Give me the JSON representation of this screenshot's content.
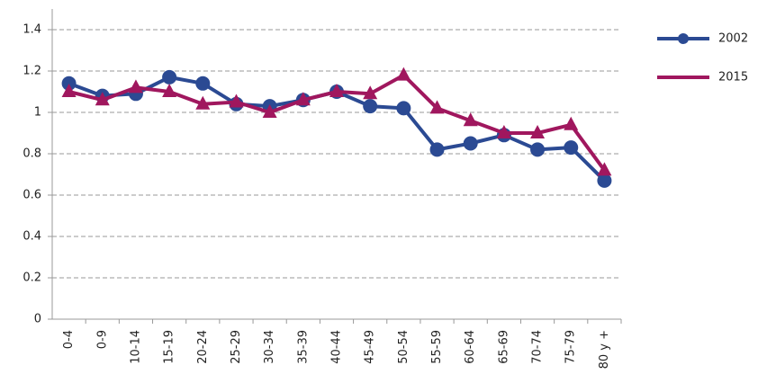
{
  "chart_data": {
    "type": "line",
    "categories": [
      "0-4",
      "0-9",
      "10-14",
      "15-19",
      "20-24",
      "25-29",
      "30-34",
      "35-39",
      "40-44",
      "45-49",
      "50-54",
      "55-59",
      "60-64",
      "65-69",
      "70-74",
      "75-79",
      "80 y +"
    ],
    "series": [
      {
        "name": "2002",
        "color": "#2b4a93",
        "marker": "circle",
        "values": [
          1.14,
          1.08,
          1.09,
          1.17,
          1.14,
          1.04,
          1.03,
          1.06,
          1.1,
          1.03,
          1.02,
          0.82,
          0.85,
          0.89,
          0.82,
          0.83,
          0.67
        ]
      },
      {
        "name": "2015",
        "color": "#a0175e",
        "marker": "triangle",
        "values": [
          1.1,
          1.06,
          1.12,
          1.1,
          1.04,
          1.05,
          1.0,
          1.06,
          1.1,
          1.09,
          1.18,
          1.02,
          0.96,
          0.9,
          0.9,
          0.94,
          0.72
        ]
      }
    ],
    "ylim": [
      0,
      1.5
    ],
    "yticks": [
      0,
      0.2,
      0.4,
      0.6,
      0.8,
      1,
      1.2,
      1.4
    ],
    "grid": true,
    "legend": "right"
  }
}
